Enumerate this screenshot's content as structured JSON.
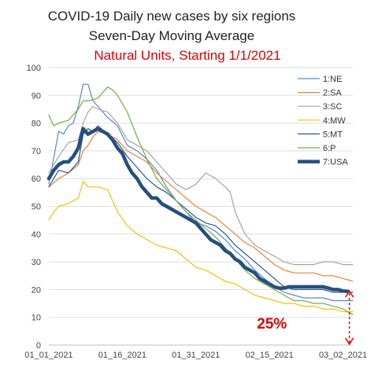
{
  "chart_data": {
    "type": "line",
    "title": "COVID-19 Daily new cases by six regions",
    "subtitle": "Seven-Day Moving Average",
    "subtitle2": "Natural Units, Starting 1/1/2021",
    "ylim": [
      0,
      100
    ],
    "yticks": [
      0,
      10,
      20,
      30,
      40,
      50,
      60,
      70,
      80,
      90,
      100
    ],
    "xlim": [
      0,
      62
    ],
    "xticks": [
      {
        "x": 0,
        "label": "01_01_2021"
      },
      {
        "x": 15,
        "label": "01_16_2021"
      },
      {
        "x": 30,
        "label": "01_31_2021"
      },
      {
        "x": 45,
        "label": "02_15_2021"
      },
      {
        "x": 60,
        "label": "03_02_2021"
      }
    ],
    "grid": true,
    "legend_position": "right",
    "series": [
      {
        "name": "1:NE",
        "color": "#5b87c5",
        "width": 1.2,
        "points": [
          [
            0,
            58
          ],
          [
            2,
            77
          ],
          [
            3,
            76
          ],
          [
            4,
            79
          ],
          [
            5,
            80
          ],
          [
            6,
            86
          ],
          [
            7,
            94
          ],
          [
            8,
            94
          ],
          [
            9,
            88
          ],
          [
            10,
            86
          ],
          [
            12,
            82
          ],
          [
            14,
            79
          ],
          [
            16,
            72
          ],
          [
            18,
            70
          ],
          [
            20,
            67
          ],
          [
            22,
            63
          ],
          [
            24,
            57
          ],
          [
            26,
            52
          ],
          [
            28,
            48
          ],
          [
            30,
            44
          ],
          [
            32,
            43
          ],
          [
            34,
            41
          ],
          [
            36,
            38
          ],
          [
            38,
            34
          ],
          [
            40,
            31
          ],
          [
            42,
            27
          ],
          [
            44,
            24
          ],
          [
            46,
            21
          ],
          [
            48,
            19
          ],
          [
            50,
            18
          ],
          [
            52,
            17
          ],
          [
            54,
            17
          ],
          [
            56,
            17
          ],
          [
            58,
            16
          ],
          [
            60,
            16
          ],
          [
            62,
            16
          ]
        ]
      },
      {
        "name": "2:SA",
        "color": "#e4843c",
        "width": 1.2,
        "points": [
          [
            0,
            57
          ],
          [
            2,
            60
          ],
          [
            4,
            62
          ],
          [
            6,
            65
          ],
          [
            7,
            70
          ],
          [
            8,
            72
          ],
          [
            9,
            75
          ],
          [
            10,
            77
          ],
          [
            12,
            76
          ],
          [
            14,
            74
          ],
          [
            16,
            70
          ],
          [
            18,
            68
          ],
          [
            20,
            66
          ],
          [
            22,
            62
          ],
          [
            24,
            59
          ],
          [
            26,
            56
          ],
          [
            28,
            53
          ],
          [
            30,
            50
          ],
          [
            32,
            48
          ],
          [
            34,
            46
          ],
          [
            36,
            43
          ],
          [
            38,
            40
          ],
          [
            40,
            37
          ],
          [
            42,
            35
          ],
          [
            44,
            32
          ],
          [
            46,
            29
          ],
          [
            48,
            27
          ],
          [
            50,
            26
          ],
          [
            52,
            26
          ],
          [
            54,
            26
          ],
          [
            56,
            25
          ],
          [
            58,
            25
          ],
          [
            60,
            24
          ],
          [
            62,
            23
          ]
        ]
      },
      {
        "name": "3:SC",
        "color": "#a5a5a5",
        "width": 1.2,
        "points": [
          [
            0,
            62
          ],
          [
            2,
            68
          ],
          [
            4,
            73
          ],
          [
            6,
            74
          ],
          [
            7,
            80
          ],
          [
            8,
            84
          ],
          [
            9,
            86
          ],
          [
            10,
            85
          ],
          [
            12,
            84
          ],
          [
            14,
            80
          ],
          [
            16,
            74
          ],
          [
            18,
            72
          ],
          [
            20,
            70
          ],
          [
            22,
            66
          ],
          [
            24,
            62
          ],
          [
            26,
            58
          ],
          [
            28,
            56
          ],
          [
            30,
            58
          ],
          [
            32,
            62
          ],
          [
            34,
            60
          ],
          [
            36,
            57
          ],
          [
            37,
            55
          ],
          [
            38,
            48
          ],
          [
            40,
            40
          ],
          [
            42,
            36
          ],
          [
            44,
            34
          ],
          [
            46,
            32
          ],
          [
            48,
            30
          ],
          [
            50,
            29
          ],
          [
            52,
            29
          ],
          [
            54,
            29
          ],
          [
            56,
            30
          ],
          [
            58,
            30
          ],
          [
            60,
            29
          ],
          [
            62,
            29
          ]
        ]
      },
      {
        "name": "4:MW",
        "color": "#f2c10a",
        "width": 1.2,
        "points": [
          [
            0,
            45
          ],
          [
            1,
            48
          ],
          [
            2,
            50
          ],
          [
            4,
            51
          ],
          [
            6,
            53
          ],
          [
            7,
            59
          ],
          [
            8,
            57
          ],
          [
            10,
            57
          ],
          [
            12,
            56
          ],
          [
            14,
            48
          ],
          [
            16,
            43
          ],
          [
            18,
            40
          ],
          [
            20,
            38
          ],
          [
            22,
            36
          ],
          [
            24,
            35
          ],
          [
            26,
            34
          ],
          [
            28,
            31
          ],
          [
            30,
            28
          ],
          [
            32,
            27
          ],
          [
            34,
            25
          ],
          [
            36,
            23
          ],
          [
            38,
            22
          ],
          [
            40,
            20
          ],
          [
            42,
            18
          ],
          [
            44,
            17
          ],
          [
            46,
            16
          ],
          [
            48,
            15
          ],
          [
            50,
            15
          ],
          [
            52,
            14
          ],
          [
            54,
            14
          ],
          [
            56,
            13
          ],
          [
            58,
            13
          ],
          [
            60,
            12
          ],
          [
            62,
            12
          ]
        ]
      },
      {
        "name": "5:MT",
        "color": "#2f5597",
        "width": 1.2,
        "points": [
          [
            0,
            57
          ],
          [
            2,
            63
          ],
          [
            4,
            62
          ],
          [
            6,
            66
          ],
          [
            7,
            76
          ],
          [
            8,
            78
          ],
          [
            9,
            77
          ],
          [
            10,
            79
          ],
          [
            12,
            76
          ],
          [
            14,
            73
          ],
          [
            16,
            68
          ],
          [
            18,
            64
          ],
          [
            20,
            60
          ],
          [
            22,
            57
          ],
          [
            24,
            55
          ],
          [
            26,
            52
          ],
          [
            28,
            49
          ],
          [
            30,
            46
          ],
          [
            32,
            44
          ],
          [
            34,
            43
          ],
          [
            36,
            40
          ],
          [
            38,
            36
          ],
          [
            40,
            33
          ],
          [
            42,
            30
          ],
          [
            44,
            27
          ],
          [
            46,
            24
          ],
          [
            48,
            21
          ],
          [
            50,
            20
          ],
          [
            52,
            20
          ],
          [
            54,
            20
          ],
          [
            56,
            20
          ],
          [
            58,
            19
          ],
          [
            60,
            19
          ],
          [
            62,
            19
          ]
        ]
      },
      {
        "name": "6:P",
        "color": "#70ad47",
        "width": 1.2,
        "points": [
          [
            0,
            83
          ],
          [
            1,
            79
          ],
          [
            2,
            80
          ],
          [
            4,
            81
          ],
          [
            5,
            83
          ],
          [
            6,
            85
          ],
          [
            7,
            88
          ],
          [
            8,
            88
          ],
          [
            10,
            89
          ],
          [
            12,
            93
          ],
          [
            13,
            92
          ],
          [
            14,
            90
          ],
          [
            16,
            84
          ],
          [
            18,
            75
          ],
          [
            20,
            67
          ],
          [
            22,
            60
          ],
          [
            24,
            56
          ],
          [
            26,
            52
          ],
          [
            28,
            48
          ],
          [
            30,
            45
          ],
          [
            32,
            42
          ],
          [
            34,
            39
          ],
          [
            36,
            35
          ],
          [
            38,
            31
          ],
          [
            40,
            27
          ],
          [
            42,
            24
          ],
          [
            44,
            22
          ],
          [
            46,
            20
          ],
          [
            48,
            18
          ],
          [
            50,
            16
          ],
          [
            52,
            16
          ],
          [
            54,
            15
          ],
          [
            56,
            15
          ],
          [
            58,
            14
          ],
          [
            60,
            13
          ],
          [
            62,
            11
          ]
        ]
      },
      {
        "name": "7:USA",
        "color": "#264f7d",
        "width": 4.5,
        "points": [
          [
            0,
            60
          ],
          [
            1,
            63
          ],
          [
            2,
            65
          ],
          [
            3,
            66
          ],
          [
            4,
            66
          ],
          [
            5,
            68
          ],
          [
            6,
            71
          ],
          [
            7,
            78
          ],
          [
            8,
            76
          ],
          [
            9,
            77
          ],
          [
            10,
            78
          ],
          [
            11,
            77
          ],
          [
            12,
            76
          ],
          [
            13,
            74
          ],
          [
            14,
            71
          ],
          [
            15,
            69
          ],
          [
            16,
            65
          ],
          [
            17,
            62
          ],
          [
            18,
            60
          ],
          [
            19,
            57
          ],
          [
            20,
            55
          ],
          [
            21,
            53
          ],
          [
            22,
            53
          ],
          [
            23,
            51
          ],
          [
            24,
            50
          ],
          [
            25,
            49
          ],
          [
            26,
            48
          ],
          [
            27,
            47
          ],
          [
            28,
            46
          ],
          [
            29,
            45
          ],
          [
            30,
            44
          ],
          [
            31,
            42
          ],
          [
            32,
            40
          ],
          [
            33,
            38
          ],
          [
            34,
            37
          ],
          [
            35,
            36
          ],
          [
            36,
            34
          ],
          [
            37,
            33
          ],
          [
            38,
            31
          ],
          [
            39,
            30
          ],
          [
            40,
            28
          ],
          [
            41,
            27
          ],
          [
            42,
            26
          ],
          [
            43,
            24
          ],
          [
            44,
            23
          ],
          [
            45,
            22
          ],
          [
            46,
            21
          ],
          [
            47,
            20.5
          ],
          [
            48,
            20.5
          ],
          [
            49,
            21
          ],
          [
            50,
            21
          ],
          [
            51,
            21
          ],
          [
            52,
            21
          ],
          [
            53,
            21
          ],
          [
            54,
            21
          ],
          [
            55,
            21
          ],
          [
            56,
            21
          ],
          [
            57,
            20.5
          ],
          [
            58,
            20
          ],
          [
            59,
            20
          ],
          [
            60,
            19.5
          ],
          [
            61,
            19.3
          ]
        ]
      }
    ],
    "annotations": [
      {
        "text": "25%",
        "x": 45.5,
        "y": 6
      }
    ]
  }
}
